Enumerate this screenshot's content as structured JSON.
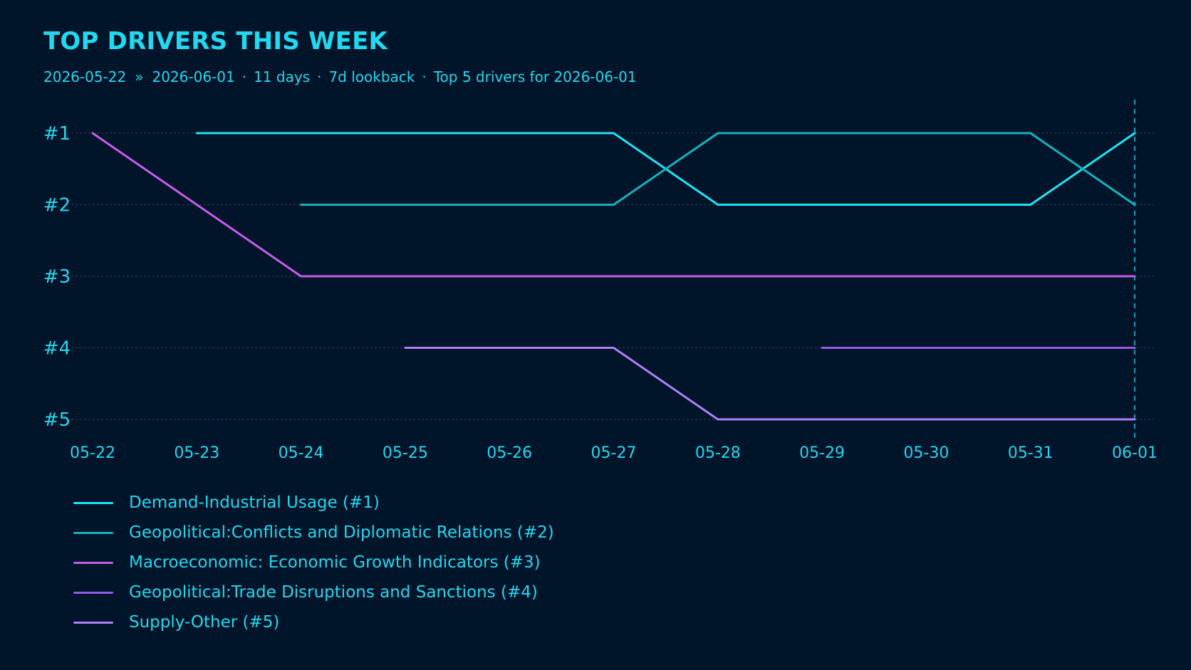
{
  "header": {
    "title": "TOP DRIVERS THIS WEEK",
    "start_date": "2026-05-22",
    "range_sep": "»",
    "end_date": "2026-06-01",
    "days": "11 days",
    "lookback": "7d lookback",
    "summary": "Top 5 drivers for 2026-06-01",
    "dot": "·"
  },
  "chart_data": {
    "type": "line",
    "title": "TOP DRIVERS THIS WEEK",
    "x": [
      "05-22",
      "05-23",
      "05-24",
      "05-25",
      "05-26",
      "05-27",
      "05-28",
      "05-29",
      "05-30",
      "05-31",
      "06-01"
    ],
    "y_tick_labels": [
      "#1",
      "#2",
      "#3",
      "#4",
      "#5"
    ],
    "ylim": [
      1,
      5
    ],
    "y_inverted": true,
    "grid": "horizontal dashed",
    "marker_date": "06-01",
    "legend_placement": "bottom-left",
    "series": [
      {
        "name": "Demand-Industrial Usage (#1)",
        "color": "#1fe3f2",
        "points": [
          [
            "05-23",
            1
          ],
          [
            "05-27",
            1
          ],
          [
            "05-28",
            2
          ],
          [
            "05-31",
            2
          ],
          [
            "06-01",
            1
          ]
        ]
      },
      {
        "name": "Geopolitical:Conflicts and Diplomatic Relations (#2)",
        "color": "#14b2be",
        "points": [
          [
            "05-24",
            2
          ],
          [
            "05-27",
            2
          ],
          [
            "05-28",
            1
          ],
          [
            "05-31",
            1
          ],
          [
            "06-01",
            2
          ]
        ]
      },
      {
        "name": "Macroeconomic: Economic Growth Indicators (#3)",
        "color": "#c65de8",
        "points": [
          [
            "05-22",
            1
          ],
          [
            "05-24",
            3
          ],
          [
            "06-01",
            3
          ]
        ]
      },
      {
        "name": "Geopolitical:Trade Disruptions and Sanctions (#4)",
        "color": "#9a58e6",
        "points": [
          [
            "05-29",
            4
          ],
          [
            "06-01",
            4
          ]
        ]
      },
      {
        "name": "Supply-Other (#5)",
        "color": "#b07ef4",
        "points": [
          [
            "05-25",
            4
          ],
          [
            "05-27",
            4
          ],
          [
            "05-28",
            5
          ],
          [
            "06-01",
            5
          ]
        ]
      }
    ]
  },
  "colors": {
    "background": "#00142a",
    "text": "#22d8ee",
    "grid": "#1b4a63",
    "marker": "#1fc8de"
  }
}
